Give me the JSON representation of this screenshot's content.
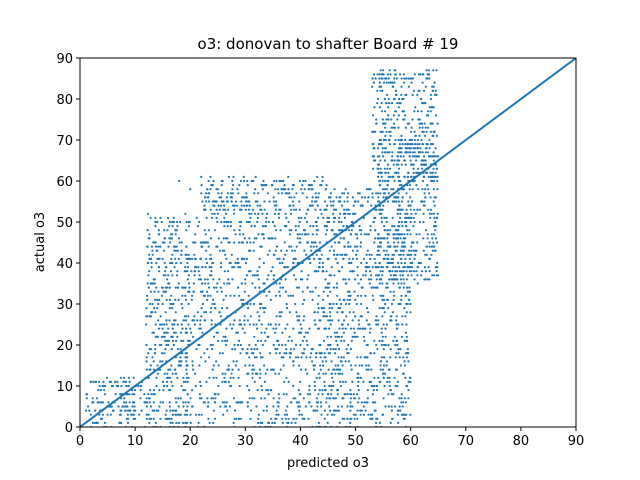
{
  "chart_data": {
    "type": "scatter",
    "title": "o3: donovan to shafter Board # 19",
    "xlabel": "predicted o3",
    "ylabel": "actual o3",
    "xlim": [
      0,
      90
    ],
    "ylim": [
      0,
      90
    ],
    "xticks": [
      "0",
      "10",
      "20",
      "30",
      "40",
      "50",
      "60",
      "70",
      "80",
      "90"
    ],
    "yticks": [
      "0",
      "10",
      "20",
      "30",
      "40",
      "50",
      "60",
      "70",
      "80",
      "90"
    ],
    "grid": false,
    "color": "#1f77b4",
    "reference_line": {
      "x": [
        0,
        90
      ],
      "y": [
        0,
        90
      ]
    },
    "point_density_regions": [
      {
        "x_range": [
          1,
          12
        ],
        "y_range": [
          0,
          12
        ]
      },
      {
        "x_range": [
          12,
          20
        ],
        "y_range": [
          0,
          52
        ]
      },
      {
        "x_range": [
          20,
          44
        ],
        "y_range": [
          0,
          52
        ]
      },
      {
        "x_range": [
          44,
          60
        ],
        "y_range": [
          0,
          58
        ]
      },
      {
        "x_range": [
          54,
          65
        ],
        "y_range": [
          35,
          70
        ]
      },
      {
        "x_range": [
          53,
          65
        ],
        "y_range": [
          60,
          87
        ]
      },
      {
        "x_range": [
          22,
          45
        ],
        "y_range": [
          52,
          61
        ]
      }
    ],
    "sample_points": [
      [
        2,
        0
      ],
      [
        3,
        1
      ],
      [
        4,
        2
      ],
      [
        5,
        3
      ],
      [
        6,
        4
      ],
      [
        7,
        5
      ],
      [
        8,
        6
      ],
      [
        9,
        8
      ],
      [
        10,
        9
      ],
      [
        11,
        10
      ],
      [
        12,
        12
      ],
      [
        13,
        40
      ],
      [
        14,
        43
      ],
      [
        15,
        30
      ],
      [
        16,
        20
      ],
      [
        17,
        50
      ],
      [
        18,
        60
      ],
      [
        20,
        58
      ],
      [
        22,
        61
      ],
      [
        25,
        52
      ],
      [
        28,
        48
      ],
      [
        30,
        35
      ],
      [
        32,
        5
      ],
      [
        35,
        50
      ],
      [
        38,
        57
      ],
      [
        40,
        45
      ],
      [
        42,
        58
      ],
      [
        44,
        60
      ],
      [
        46,
        55
      ],
      [
        48,
        52
      ],
      [
        50,
        55
      ],
      [
        52,
        40
      ],
      [
        53,
        83
      ],
      [
        55,
        87
      ],
      [
        57,
        80
      ],
      [
        59,
        70
      ],
      [
        60,
        40
      ],
      [
        61,
        62
      ],
      [
        62,
        65
      ],
      [
        63,
        85
      ],
      [
        64,
        82
      ],
      [
        65,
        66
      ]
    ]
  }
}
